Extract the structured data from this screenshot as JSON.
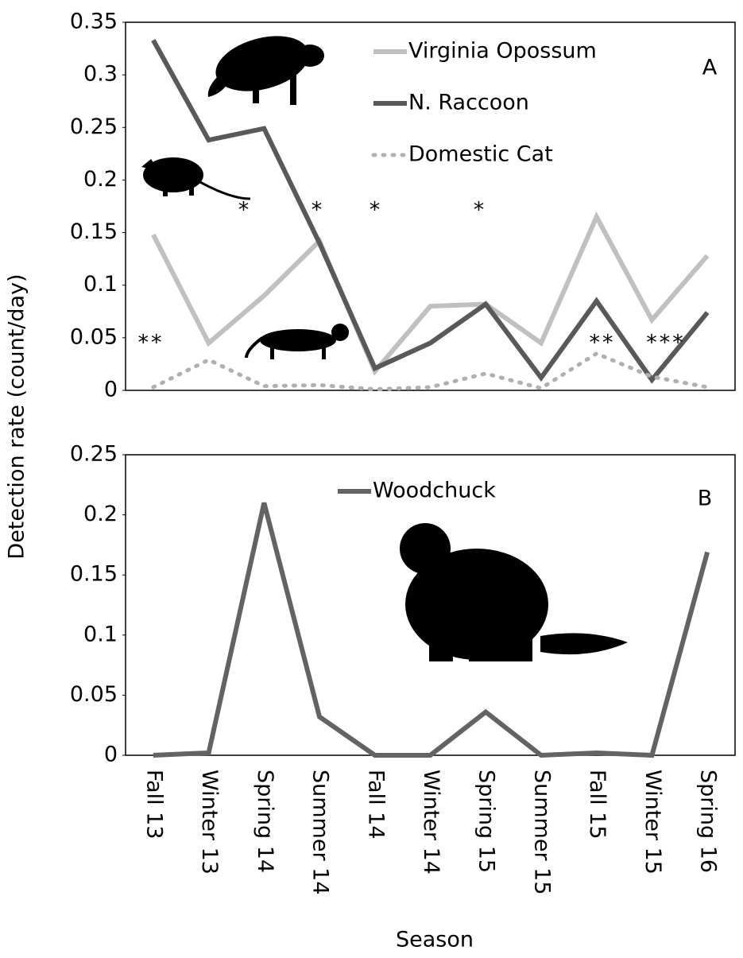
{
  "chart_data": [
    {
      "type": "line",
      "panel_label": "A",
      "y_label": "Detection rate (count/day)",
      "categories": [
        "Fall 13",
        "Winter 13",
        "Spring 14",
        "Summer 14",
        "Fall 14",
        "Winter 14",
        "Spring 15",
        "Summer 15",
        "Fall 15",
        "Winter 15",
        "Spring 16"
      ],
      "series": [
        {
          "name": "Virginia Opossum",
          "color": "#c0c0c0",
          "dash": false,
          "values": [
            0.148,
            0.045,
            0.09,
            0.142,
            0.018,
            0.08,
            0.082,
            0.045,
            0.165,
            0.067,
            0.128
          ]
        },
        {
          "name": "N. Raccoon",
          "color": "#595959",
          "dash": false,
          "values": [
            0.333,
            0.238,
            0.249,
            0.14,
            0.021,
            0.045,
            0.082,
            0.012,
            0.085,
            0.01,
            0.074
          ]
        },
        {
          "name": "Domestic Cat",
          "color": "#b0b0b0",
          "dash": true,
          "values": [
            0.003,
            0.029,
            0.004,
            0.005,
            0.001,
            0.003,
            0.016,
            0.002,
            0.035,
            0.013,
            0.003
          ]
        }
      ],
      "annotations": [
        "**",
        "*",
        "*",
        "*",
        "*",
        "**",
        "***"
      ],
      "ylim": [
        0,
        0.35
      ],
      "yticks": [
        0,
        0.05,
        0.1,
        0.15,
        0.2,
        0.25,
        0.3,
        0.35
      ]
    },
    {
      "type": "line",
      "panel_label": "B",
      "x_label": "Season",
      "categories": [
        "Fall 13",
        "Winter 13",
        "Spring 14",
        "Summer 14",
        "Fall 14",
        "Winter 14",
        "Spring 15",
        "Summer 15",
        "Fall 15",
        "Winter 15",
        "Spring 16"
      ],
      "series": [
        {
          "name": "Woodchuck",
          "color": "#636363",
          "dash": false,
          "values": [
            0,
            0.002,
            0.21,
            0.032,
            0,
            0,
            0.036,
            0,
            0.002,
            0,
            0.169
          ]
        }
      ],
      "ylim": [
        0,
        0.25
      ],
      "yticks": [
        0,
        0.05,
        0.1,
        0.15,
        0.2,
        0.25
      ]
    }
  ]
}
